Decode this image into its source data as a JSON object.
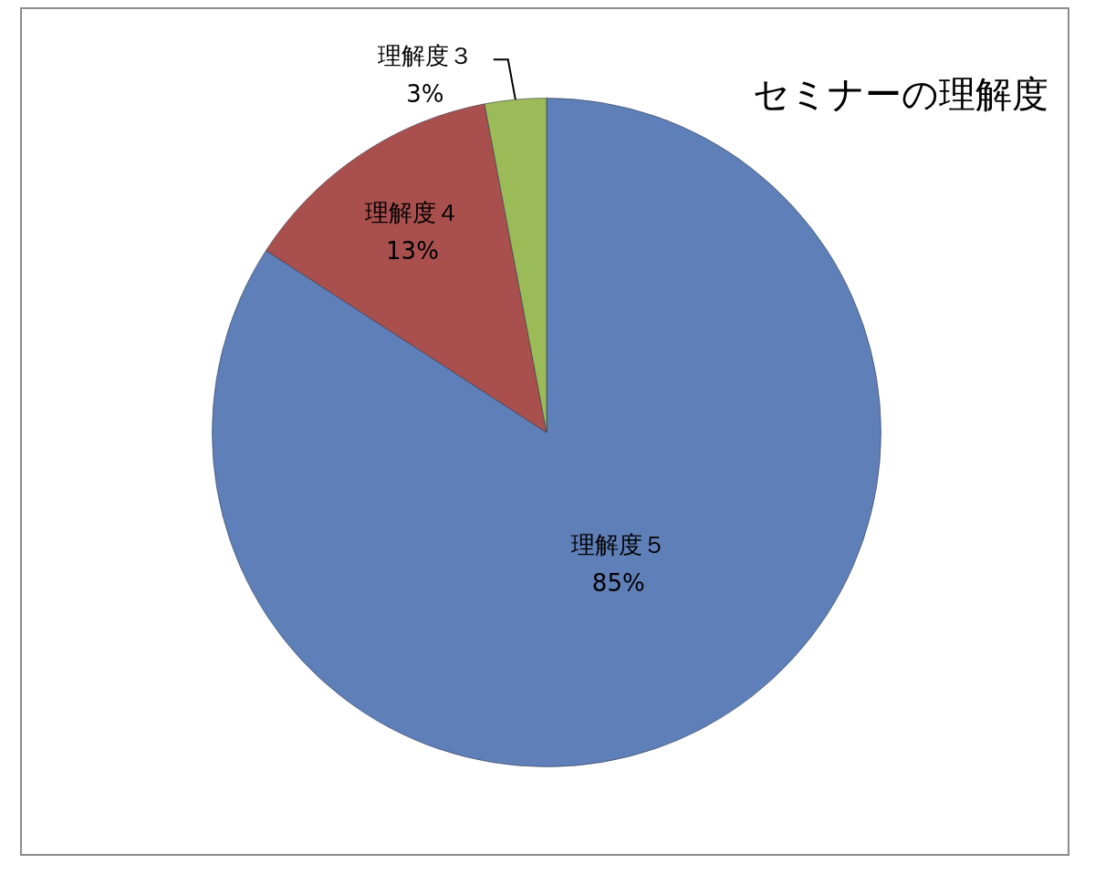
{
  "chart_data": {
    "type": "pie",
    "title": "セミナーの理解度",
    "categories": [
      "理解度５",
      "理解度４",
      "理解度３"
    ],
    "values": [
      85,
      13,
      3
    ],
    "value_labels": [
      "85%",
      "13%",
      "3%"
    ],
    "colors": [
      "#5f7fb8",
      "#a9504e",
      "#9bbb59"
    ],
    "legend": false
  }
}
